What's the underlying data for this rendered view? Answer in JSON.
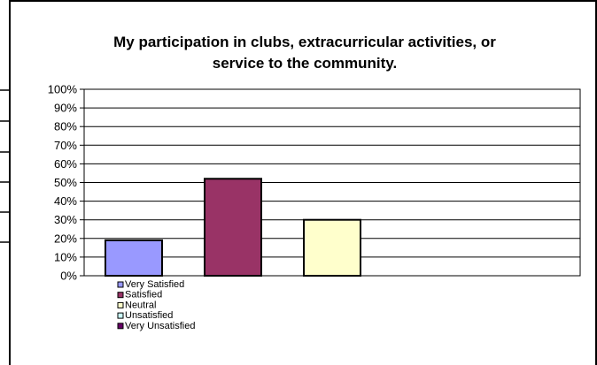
{
  "chart_data": {
    "type": "bar",
    "title_lines": [
      "My participation in clubs, extracurricular activities, or",
      "service to the community."
    ],
    "categories": [
      "Very Satisfied",
      "Satisfied",
      "Neutral",
      "Unsatisfied",
      "Very Unsatisfied"
    ],
    "values": [
      19,
      52,
      30,
      0,
      0
    ],
    "colors": [
      "#9999ff",
      "#993366",
      "#ffffcc",
      "#ccffff",
      "#660066"
    ],
    "ylim": [
      0,
      100
    ],
    "yticks": [
      "0%",
      "10%",
      "20%",
      "30%",
      "40%",
      "50%",
      "60%",
      "70%",
      "80%",
      "90%",
      "100%"
    ],
    "grid": true,
    "legend_position": "bottom-left"
  }
}
